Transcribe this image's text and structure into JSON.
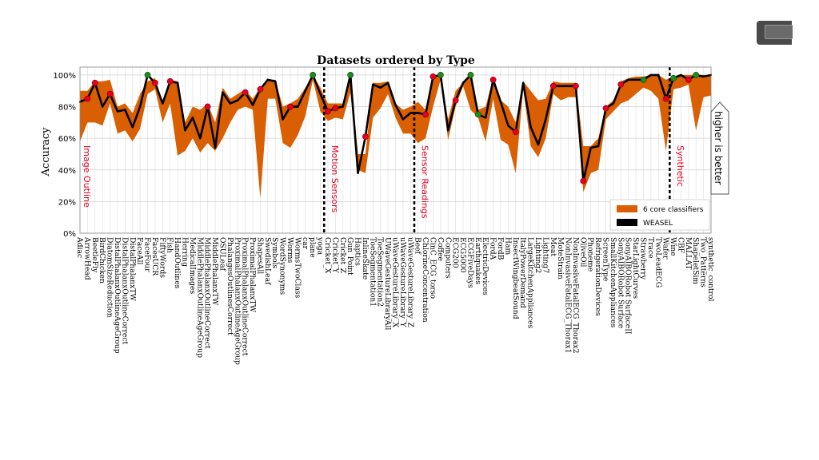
{
  "chart_data": {
    "type": "line",
    "title": "Datasets ordered by Type",
    "ylabel": "Accuracy",
    "xlabel": "",
    "ylim": [
      0,
      1.05
    ],
    "y_ticks": [
      "0%",
      "20%",
      "40%",
      "60%",
      "80%",
      "100%"
    ],
    "y_tick_values": [
      0,
      0.2,
      0.4,
      0.6,
      0.8,
      1.0
    ],
    "grid": true,
    "legend_position": "lower-right",
    "categories": [
      "Adiac",
      "ArrowHead",
      "BeetleFly",
      "BirdChicken",
      "DiatomSizeReduction",
      "DistalPhalanxOutlineAgeGroup",
      "DistalPhalanxOutlineCorrect",
      "DistalPhalanxTW",
      "FaceAll",
      "FaceFour",
      "FacesUCR",
      "FiftyWords",
      "Fish",
      "HandOutlines",
      "Herring",
      "MedicalImages",
      "MiddlePhalanxOutlineAgeGroup",
      "MiddlePhalanxOutlineCorrect",
      "MiddlePhalanxTW",
      "OSULeaf",
      "PhalangesOutlinesCorrect",
      "ProximalPhalanxOutlineAgeGroup",
      "ProximalPhalanxOutlineCorrect",
      "ProximalPhalanxTW",
      "ShapesAll",
      "SwedishLeaf",
      "Symbols",
      "WordSynonyms",
      "Worms",
      "WormsTwoClass",
      "car",
      "plane",
      "yoga",
      "Cricket_X",
      "Cricket_Y",
      "Cricket_Z",
      "Gun_Point",
      "Haptics",
      "InlineSkate",
      "ToeSegmentation1",
      "ToeSegmentation2",
      "UWaveGestureLibraryAll",
      "uWaveGestureLibrary_X",
      "uWaveGestureLibrary_Y",
      "uWaveGestureLibrary_Z",
      "Beef",
      "ChlorineConcentration",
      "CinC_ECG_torso",
      "Coffee",
      "Computers",
      "ECG200",
      "ECG5000",
      "ECGFiveDays",
      "Earthquakes",
      "ElectricDevices",
      "FordA",
      "FordB",
      "Ham",
      "InsectWingbeatSound",
      "ItalyPowerDemand",
      "LargeKitchenAppliances",
      "Lighting2",
      "Lighting7",
      "Meat",
      "MoteStrain",
      "NonInvasiveFatalECG_Thorax1",
      "NonInvasiveFatalECG_Thorax2",
      "OliveOil",
      "Phoneme",
      "RefrigerationDevices",
      "ScreenType",
      "SmallKitchenAppliances",
      "SonyAIBORobot Surface",
      "SonyAIBORobot SurfaceII",
      "StarLightCurves",
      "Strawberry",
      "Trace",
      "TwoLeadECG",
      "Wafer",
      "Wine",
      "CBF",
      "MALLAT",
      "ShapeletSim",
      "Two_Patterns",
      "synthetic_control"
    ],
    "series": [
      {
        "name": "WEASEL",
        "values": [
          0.83,
          0.85,
          0.95,
          0.8,
          0.88,
          0.77,
          0.78,
          0.67,
          0.8,
          1.0,
          0.95,
          0.82,
          0.96,
          0.95,
          0.65,
          0.73,
          0.6,
          0.8,
          0.54,
          0.89,
          0.82,
          0.84,
          0.89,
          0.81,
          0.91,
          0.97,
          0.96,
          0.72,
          0.8,
          0.8,
          0.9,
          1.0,
          0.88,
          0.77,
          0.79,
          0.8,
          1.0,
          0.38,
          0.61,
          0.94,
          0.92,
          0.95,
          0.81,
          0.72,
          0.76,
          0.76,
          0.75,
          0.99,
          1.0,
          0.65,
          0.84,
          0.95,
          1.0,
          0.75,
          0.73,
          0.97,
          0.83,
          0.68,
          0.64,
          0.95,
          0.67,
          0.56,
          0.72,
          0.93,
          0.93,
          0.93,
          0.93,
          0.33,
          0.54,
          0.55,
          0.79,
          0.82,
          0.94,
          0.97,
          0.97,
          0.97,
          1.0,
          1.0,
          0.85,
          0.98,
          1.0,
          0.97,
          1.0,
          0.99,
          1.0
        ]
      },
      {
        "name": "6 core classifiers",
        "low": [
          0.58,
          0.7,
          0.7,
          0.68,
          0.82,
          0.63,
          0.65,
          0.58,
          0.66,
          0.88,
          0.91,
          0.7,
          0.82,
          0.49,
          0.52,
          0.6,
          0.51,
          0.57,
          0.52,
          0.6,
          0.7,
          0.78,
          0.8,
          0.78,
          0.22,
          0.85,
          0.85,
          0.57,
          0.54,
          0.62,
          0.74,
          0.97,
          0.77,
          0.71,
          0.73,
          0.72,
          0.89,
          0.4,
          0.38,
          0.73,
          0.79,
          0.88,
          0.73,
          0.63,
          0.63,
          0.57,
          0.6,
          0.8,
          0.97,
          0.59,
          0.8,
          0.93,
          0.78,
          0.73,
          0.58,
          0.85,
          0.59,
          0.56,
          0.38,
          0.91,
          0.55,
          0.48,
          0.6,
          0.88,
          0.84,
          0.86,
          0.86,
          0.26,
          0.38,
          0.4,
          0.72,
          0.77,
          0.82,
          0.84,
          0.88,
          0.92,
          0.9,
          0.85,
          0.52,
          0.91,
          0.92,
          0.94,
          0.65,
          0.86,
          0.87
        ],
        "high": [
          0.9,
          0.9,
          0.96,
          0.96,
          0.97,
          0.8,
          0.82,
          0.76,
          0.88,
          0.96,
          0.98,
          0.83,
          0.97,
          0.96,
          0.7,
          0.8,
          0.78,
          0.82,
          0.7,
          0.92,
          0.85,
          0.88,
          0.91,
          0.85,
          0.92,
          0.97,
          0.97,
          0.8,
          0.82,
          0.85,
          0.92,
          1.0,
          0.92,
          0.82,
          0.82,
          0.82,
          1.0,
          0.5,
          0.5,
          0.95,
          0.95,
          0.96,
          0.82,
          0.78,
          0.8,
          0.83,
          0.78,
          0.99,
          1.0,
          0.72,
          0.9,
          0.95,
          1.0,
          0.78,
          0.8,
          0.98,
          0.84,
          0.8,
          0.7,
          0.96,
          0.9,
          0.84,
          0.85,
          0.96,
          0.95,
          0.95,
          0.95,
          0.55,
          0.55,
          0.6,
          0.8,
          0.84,
          0.96,
          0.98,
          0.99,
          0.99,
          1.0,
          1.0,
          0.97,
          0.99,
          1.0,
          1.0,
          1.0,
          1.0,
          1.0
        ]
      }
    ],
    "markers": {
      "red": [
        1,
        2,
        4,
        10,
        12,
        17,
        22,
        24,
        28,
        33,
        34,
        38,
        46,
        47,
        50,
        55,
        58,
        63,
        66,
        67,
        70,
        72,
        78,
        81
      ],
      "green": [
        9,
        31,
        36,
        48,
        52,
        53,
        75,
        79,
        82
      ]
    },
    "group_separators_after": [
      32,
      44,
      78
    ],
    "groups": [
      {
        "label": "Image Outline",
        "start": 0
      },
      {
        "label": "Motion Sensors",
        "start": 33
      },
      {
        "label": "Sensor Readings",
        "start": 45
      },
      {
        "label": "Synthetic",
        "start": 79
      }
    ],
    "annotation": "higher is better",
    "colors": {
      "band": "#d95f02",
      "line": "#000000",
      "marker_red": "#e8001c",
      "marker_green": "#1e8c1e",
      "group_label": "#e8001c"
    }
  }
}
